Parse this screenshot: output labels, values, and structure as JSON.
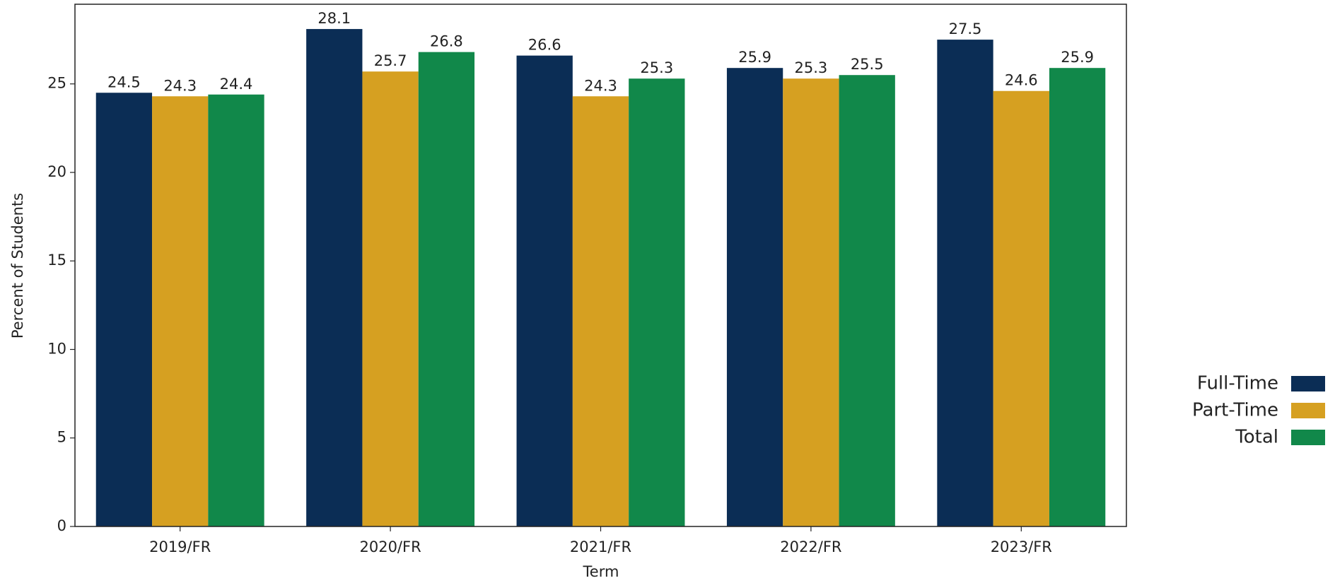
{
  "chart_data": {
    "type": "bar",
    "x_label": "Term",
    "y_label": "Percent of Students",
    "categories": [
      "2019/FR",
      "2020/FR",
      "2021/FR",
      "2022/FR",
      "2023/FR"
    ],
    "series": [
      {
        "name": "Full-Time",
        "color": "#0b2d55",
        "values": [
          24.5,
          28.1,
          26.6,
          25.9,
          27.5
        ]
      },
      {
        "name": "Part-Time",
        "color": "#d6a021",
        "values": [
          24.3,
          25.7,
          24.3,
          25.3,
          24.6
        ]
      },
      {
        "name": "Total",
        "color": "#11884a",
        "values": [
          24.4,
          26.8,
          25.3,
          25.5,
          25.9
        ]
      }
    ],
    "ylim": [
      0,
      29.5
    ],
    "yticks": [
      0,
      5,
      10,
      15,
      20,
      25
    ],
    "grid": false,
    "legend": "right"
  }
}
